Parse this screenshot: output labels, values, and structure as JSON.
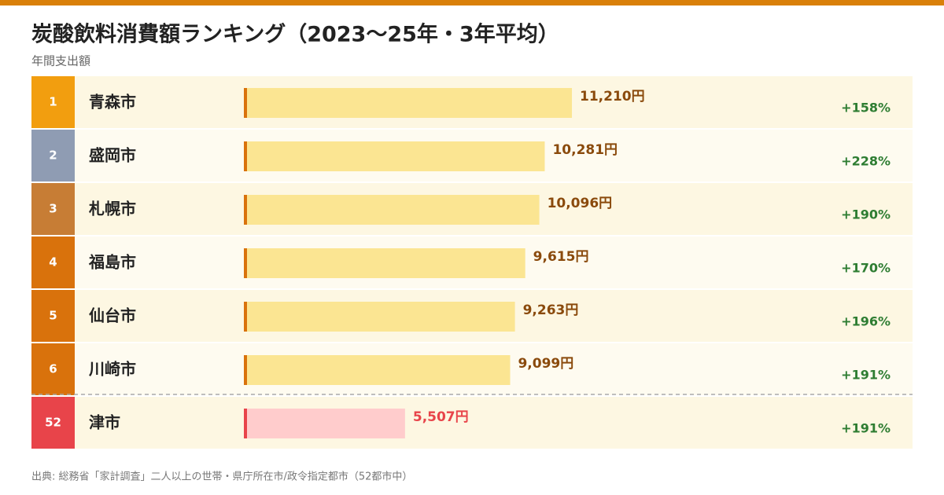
{
  "chart_data": {
    "type": "ranking-bar",
    "title": "炭酸飲料消費額ランキング（2023〜25年・3年平均）",
    "subtitle": "年間支出額",
    "ranks": [
      1,
      2,
      3,
      4,
      5,
      6,
      52
    ],
    "rank_colors": [
      "#f29e0f",
      "#8f9cb3",
      "#c77d35",
      "#d9720c",
      "#d9720c",
      "#d9720c",
      "#e8444a"
    ],
    "categories": [
      "青森市",
      "盛岡市",
      "札幌市",
      "福島市",
      "仙台市",
      "川崎市",
      "津市"
    ],
    "values": [
      11210,
      10281,
      10096,
      9615,
      9263,
      9099,
      5507
    ],
    "value_labels": [
      "11,210円",
      "10,281円",
      "10,096円",
      "9,615円",
      "9,263円",
      "9,099円",
      "5,507円"
    ],
    "colors": [
      "#fbe592",
      "#fbe592",
      "#fbe592",
      "#fbe592",
      "#fbe592",
      "#fbe592",
      "#ffcccc"
    ],
    "accent_colors": [
      "#d9720c",
      "#d9720c",
      "#d9720c",
      "#d9720c",
      "#d9720c",
      "#d9720c",
      "#e8444a"
    ],
    "label_colors": [
      "#8a4a0c",
      "#8a4a0c",
      "#8a4a0c",
      "#8a4a0c",
      "#8a4a0c",
      "#8a4a0c",
      "#e8444a"
    ],
    "change_labels": [
      "+158%",
      "+228%",
      "+190%",
      "+170%",
      "+196%",
      "+191%",
      "+191%"
    ],
    "source": "出典: 総務省「家計調査」二人以上の世帯・県庁所在市/政令指定都市（52都市中）"
  }
}
